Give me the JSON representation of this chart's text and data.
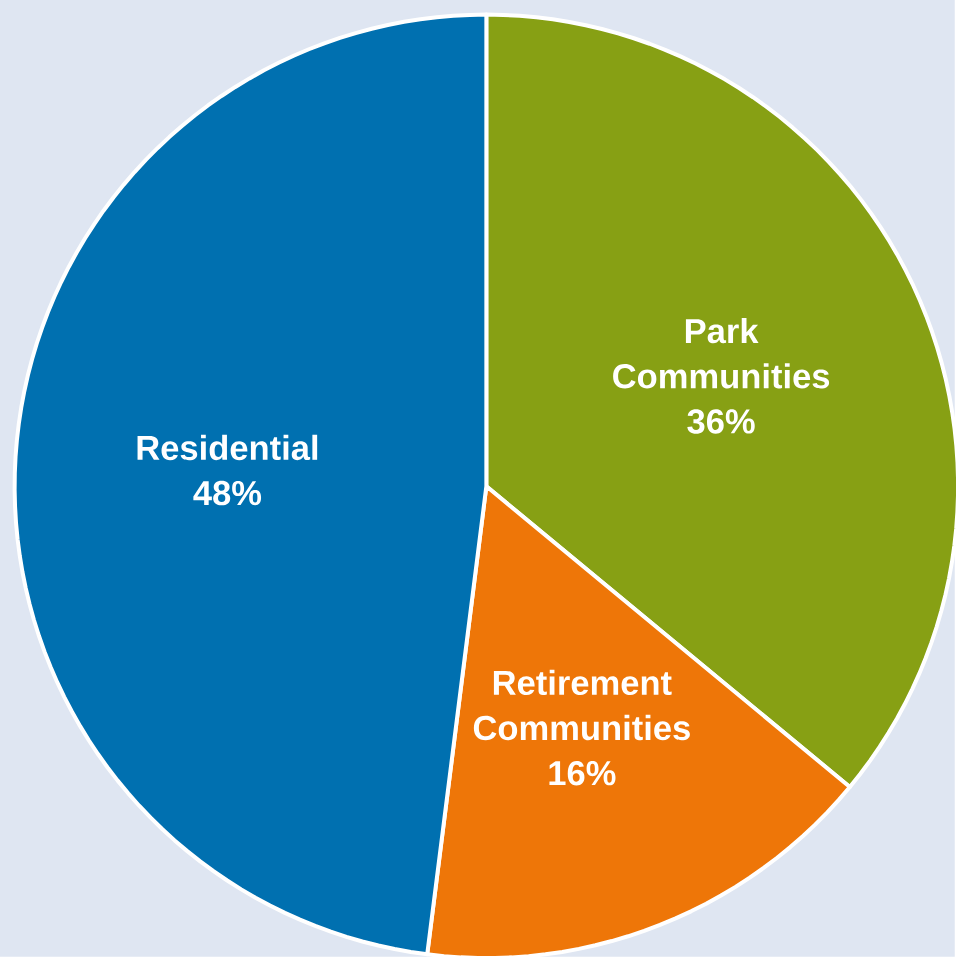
{
  "chart_data": {
    "type": "pie",
    "categories": [
      "Park Communities",
      "Retirement Communities",
      "Residential"
    ],
    "values": [
      36,
      16,
      48
    ],
    "colors": [
      "#87a014",
      "#ee7608",
      "#0070b0"
    ],
    "value_labels": [
      "36%",
      "16%",
      "48%"
    ],
    "data_labels": true
  }
}
